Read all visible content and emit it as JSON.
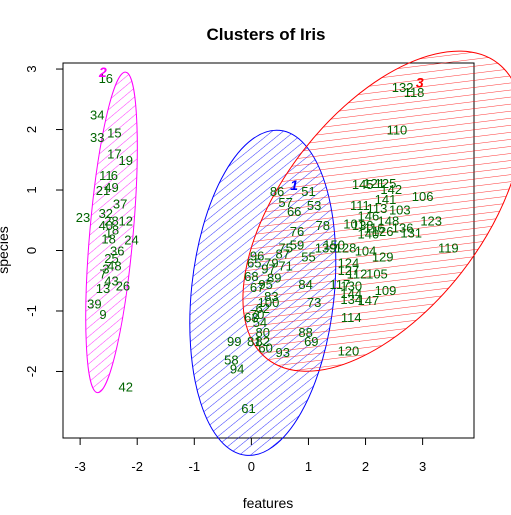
{
  "chart_data": {
    "type": "scatter",
    "title": "Clusters of Iris",
    "xlabel": "features",
    "ylabel": "species",
    "xlim": [
      -3.3,
      3.9
    ],
    "ylim": [
      -3.1,
      3.1
    ],
    "xticks": [
      "-3",
      "-2",
      "-1",
      "0",
      "1",
      "2",
      "3"
    ],
    "xtick_values": [
      -3,
      -2,
      -1,
      0,
      1,
      2,
      3
    ],
    "yticks": [
      "-2",
      "-1",
      "0",
      "1",
      "2",
      "3"
    ],
    "ytick_values": [
      -2,
      -1,
      0,
      1,
      2,
      3
    ],
    "point_color": "#006400",
    "clusters": [
      {
        "label": "1",
        "color": "#0000ff",
        "center": [
          0.2,
          -0.7
        ],
        "label_pos": [
          0.75,
          1.08
        ],
        "rx": 1.25,
        "ry": 2.7,
        "angle_deg": 6
      },
      {
        "label": "2",
        "color": "#ff00ff",
        "center": [
          -2.45,
          0.3
        ],
        "label_pos": [
          -2.6,
          2.95
        ],
        "rx": 0.38,
        "ry": 2.66,
        "angle_deg": 5
      },
      {
        "label": "3",
        "color": "#ff0000",
        "center": [
          2.3,
          0.65
        ],
        "label_pos": [
          2.95,
          2.78
        ],
        "rx": 1.75,
        "ry": 3.1,
        "angle_deg": 38
      }
    ],
    "points": [
      {
        "label": "16",
        "x": -2.55,
        "y": 2.85
      },
      {
        "label": "34",
        "x": -2.7,
        "y": 2.25
      },
      {
        "label": "15",
        "x": -2.4,
        "y": 1.95
      },
      {
        "label": "33",
        "x": -2.7,
        "y": 1.88
      },
      {
        "label": "17",
        "x": -2.4,
        "y": 1.6
      },
      {
        "label": "19",
        "x": -2.2,
        "y": 1.5
      },
      {
        "label": "11",
        "x": -2.55,
        "y": 1.25
      },
      {
        "label": "6",
        "x": -2.4,
        "y": 1.25
      },
      {
        "label": "21",
        "x": -2.6,
        "y": 1.0
      },
      {
        "label": "49",
        "x": -2.45,
        "y": 1.05
      },
      {
        "label": "37",
        "x": -2.3,
        "y": 0.78
      },
      {
        "label": "32",
        "x": -2.55,
        "y": 0.62
      },
      {
        "label": "23",
        "x": -2.95,
        "y": 0.55
      },
      {
        "label": "28",
        "x": -2.45,
        "y": 0.5
      },
      {
        "label": "12",
        "x": -2.2,
        "y": 0.5
      },
      {
        "label": "40",
        "x": -2.55,
        "y": 0.42
      },
      {
        "label": "8",
        "x": -2.38,
        "y": 0.35
      },
      {
        "label": "1",
        "x": -2.5,
        "y": 0.3
      },
      {
        "label": "24",
        "x": -2.1,
        "y": 0.18
      },
      {
        "label": "18",
        "x": -2.5,
        "y": 0.2
      },
      {
        "label": "36",
        "x": -2.35,
        "y": 0.0
      },
      {
        "label": "25",
        "x": -2.45,
        "y": -0.12
      },
      {
        "label": "3",
        "x": -2.55,
        "y": -0.3
      },
      {
        "label": "48",
        "x": -2.4,
        "y": -0.25
      },
      {
        "label": "7",
        "x": -2.6,
        "y": -0.38
      },
      {
        "label": "43",
        "x": -2.45,
        "y": -0.5
      },
      {
        "label": "13",
        "x": -2.6,
        "y": -0.62
      },
      {
        "label": "26",
        "x": -2.25,
        "y": -0.58
      },
      {
        "label": "39",
        "x": -2.75,
        "y": -0.88
      },
      {
        "label": "9",
        "x": -2.6,
        "y": -1.05
      },
      {
        "label": "42",
        "x": -2.2,
        "y": -2.25
      },
      {
        "label": "86",
        "x": 0.45,
        "y": 0.98
      },
      {
        "label": "51",
        "x": 1.0,
        "y": 0.98
      },
      {
        "label": "53",
        "x": 1.1,
        "y": 0.75
      },
      {
        "label": "57",
        "x": 0.6,
        "y": 0.8
      },
      {
        "label": "66",
        "x": 0.75,
        "y": 0.65
      },
      {
        "label": "78",
        "x": 1.25,
        "y": 0.42
      },
      {
        "label": "76",
        "x": 0.8,
        "y": 0.32
      },
      {
        "label": "59",
        "x": 0.8,
        "y": 0.1
      },
      {
        "label": "75",
        "x": 0.6,
        "y": 0.05
      },
      {
        "label": "87",
        "x": 0.55,
        "y": -0.05
      },
      {
        "label": "96",
        "x": 0.1,
        "y": -0.08
      },
      {
        "label": "71",
        "x": 0.6,
        "y": -0.25
      },
      {
        "label": "79",
        "x": 0.35,
        "y": -0.2
      },
      {
        "label": "65",
        "x": 0.05,
        "y": -0.2
      },
      {
        "label": "97",
        "x": 0.3,
        "y": -0.3
      },
      {
        "label": "55",
        "x": 1.0,
        "y": -0.1
      },
      {
        "label": "89",
        "x": 0.4,
        "y": -0.45
      },
      {
        "label": "68",
        "x": 0.0,
        "y": -0.42
      },
      {
        "label": "95",
        "x": 0.25,
        "y": -0.55
      },
      {
        "label": "67",
        "x": 0.1,
        "y": -0.6
      },
      {
        "label": "84",
        "x": 0.95,
        "y": -0.55
      },
      {
        "label": "83",
        "x": 0.35,
        "y": -0.75
      },
      {
        "label": "100",
        "x": 0.3,
        "y": -0.85
      },
      {
        "label": "62",
        "x": 0.2,
        "y": -0.95
      },
      {
        "label": "70",
        "x": 0.1,
        "y": -1.05
      },
      {
        "label": "73",
        "x": 1.1,
        "y": -0.85
      },
      {
        "label": "63",
        "x": 0.0,
        "y": -1.1
      },
      {
        "label": "54",
        "x": 0.15,
        "y": -1.18
      },
      {
        "label": "80",
        "x": 0.2,
        "y": -1.35
      },
      {
        "label": "88",
        "x": 0.95,
        "y": -1.35
      },
      {
        "label": "69",
        "x": 1.05,
        "y": -1.5
      },
      {
        "label": "99",
        "x": -0.3,
        "y": -1.5
      },
      {
        "label": "81",
        "x": 0.05,
        "y": -1.5
      },
      {
        "label": "82",
        "x": 0.2,
        "y": -1.5
      },
      {
        "label": "60",
        "x": 0.25,
        "y": -1.6
      },
      {
        "label": "93",
        "x": 0.55,
        "y": -1.68
      },
      {
        "label": "58",
        "x": -0.35,
        "y": -1.8
      },
      {
        "label": "94",
        "x": -0.25,
        "y": -1.95
      },
      {
        "label": "61",
        "x": -0.05,
        "y": -2.6
      },
      {
        "label": "132",
        "x": 2.65,
        "y": 2.7
      },
      {
        "label": "118",
        "x": 2.85,
        "y": 2.62
      },
      {
        "label": "110",
        "x": 2.55,
        "y": 2.0
      },
      {
        "label": "145",
        "x": 1.95,
        "y": 1.1
      },
      {
        "label": "121",
        "x": 2.15,
        "y": 1.12
      },
      {
        "label": "125",
        "x": 2.35,
        "y": 1.12
      },
      {
        "label": "142",
        "x": 2.45,
        "y": 1.02
      },
      {
        "label": "141",
        "x": 2.35,
        "y": 0.85
      },
      {
        "label": "106",
        "x": 3.0,
        "y": 0.9
      },
      {
        "label": "111",
        "x": 1.9,
        "y": 0.75
      },
      {
        "label": "113",
        "x": 2.2,
        "y": 0.7
      },
      {
        "label": "103",
        "x": 2.6,
        "y": 0.68
      },
      {
        "label": "146",
        "x": 2.05,
        "y": 0.58
      },
      {
        "label": "148",
        "x": 2.4,
        "y": 0.5
      },
      {
        "label": "123",
        "x": 3.15,
        "y": 0.5
      },
      {
        "label": "101",
        "x": 1.8,
        "y": 0.45
      },
      {
        "label": "138",
        "x": 1.95,
        "y": 0.42
      },
      {
        "label": "116",
        "x": 2.15,
        "y": 0.38
      },
      {
        "label": "140",
        "x": 2.05,
        "y": 0.28
      },
      {
        "label": "136",
        "x": 2.65,
        "y": 0.38
      },
      {
        "label": "131",
        "x": 2.8,
        "y": 0.3
      },
      {
        "label": "126",
        "x": 2.3,
        "y": 0.32
      },
      {
        "label": "150",
        "x": 1.45,
        "y": 0.1
      },
      {
        "label": "128",
        "x": 1.65,
        "y": 0.05
      },
      {
        "label": "104",
        "x": 2.0,
        "y": 0.0
      },
      {
        "label": "139",
        "x": 1.3,
        "y": 0.05
      },
      {
        "label": "119",
        "x": 3.45,
        "y": 0.05
      },
      {
        "label": "129",
        "x": 2.3,
        "y": -0.1
      },
      {
        "label": "124",
        "x": 1.7,
        "y": -0.2
      },
      {
        "label": "112",
        "x": 1.85,
        "y": -0.38
      },
      {
        "label": "127",
        "x": 1.7,
        "y": -0.32
      },
      {
        "label": "105",
        "x": 2.2,
        "y": -0.38
      },
      {
        "label": "117",
        "x": 1.55,
        "y": -0.55
      },
      {
        "label": "130",
        "x": 1.75,
        "y": -0.58
      },
      {
        "label": "144",
        "x": 1.75,
        "y": -0.7
      },
      {
        "label": "109",
        "x": 2.35,
        "y": -0.65
      },
      {
        "label": "147",
        "x": 2.05,
        "y": -0.82
      },
      {
        "label": "134",
        "x": 1.75,
        "y": -0.8
      },
      {
        "label": "114",
        "x": 1.75,
        "y": -1.1
      },
      {
        "label": "120",
        "x": 1.7,
        "y": -1.65
      }
    ]
  }
}
